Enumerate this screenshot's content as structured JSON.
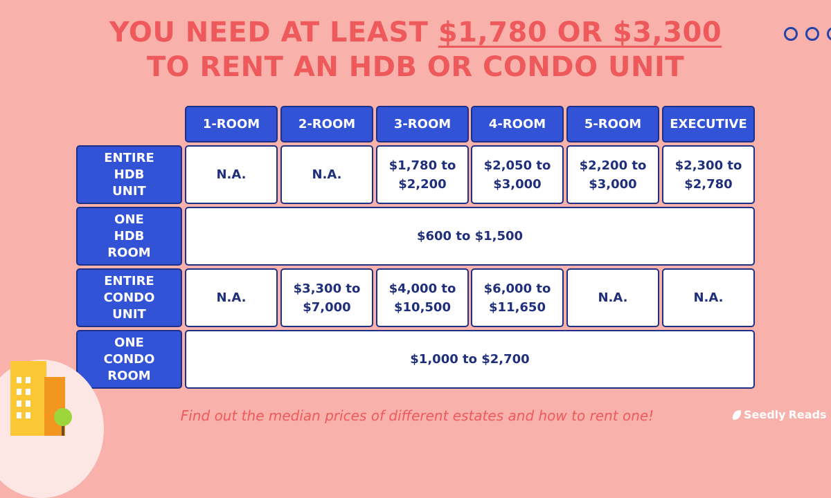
{
  "title": {
    "line1_pre": "YOU NEED AT LEAST ",
    "line1_highlight": "$1,780 OR $3,300",
    "line2": "TO RENT AN HDB OR CONDO UNIT"
  },
  "columns": [
    "1-ROOM",
    "2-ROOM",
    "3-ROOM",
    "4-ROOM",
    "5-ROOM",
    "EXECUTIVE"
  ],
  "rows": [
    {
      "label": "ENTIRE\nHDB\nUNIT",
      "values": [
        "N.A.",
        "N.A.",
        "$1,780 to\n$2,200",
        "$2,050 to\n$3,000",
        "$2,200 to\n$3,000",
        "$2,300 to\n$2,780"
      ]
    },
    {
      "label": "ONE\nHDB\nROOM",
      "span_value": "$600 to $1,500"
    },
    {
      "label": "ENTIRE\nCONDO\nUNIT",
      "values": [
        "N.A.",
        "$3,300 to\n$7,000",
        "$4,000 to\n$10,500",
        "$6,000 to\n$11,650",
        "N.A.",
        "N.A."
      ]
    },
    {
      "label": "ONE\nCONDO\nROOM",
      "span_value": "$1,000 to $2,700"
    }
  ],
  "footer": "Find out the median prices of different estates and how to rent one!",
  "brand": {
    "name1": "Seedly",
    "name2": "Reads"
  },
  "colors": {
    "background": "#f9b1ab",
    "title": "#ee5a5c",
    "header": "#3253d6",
    "value_text": "#1f2f7a"
  },
  "icons": [
    "three-circles-decoration-icon",
    "building-illustration-icon",
    "seedly-leaf-icon"
  ]
}
